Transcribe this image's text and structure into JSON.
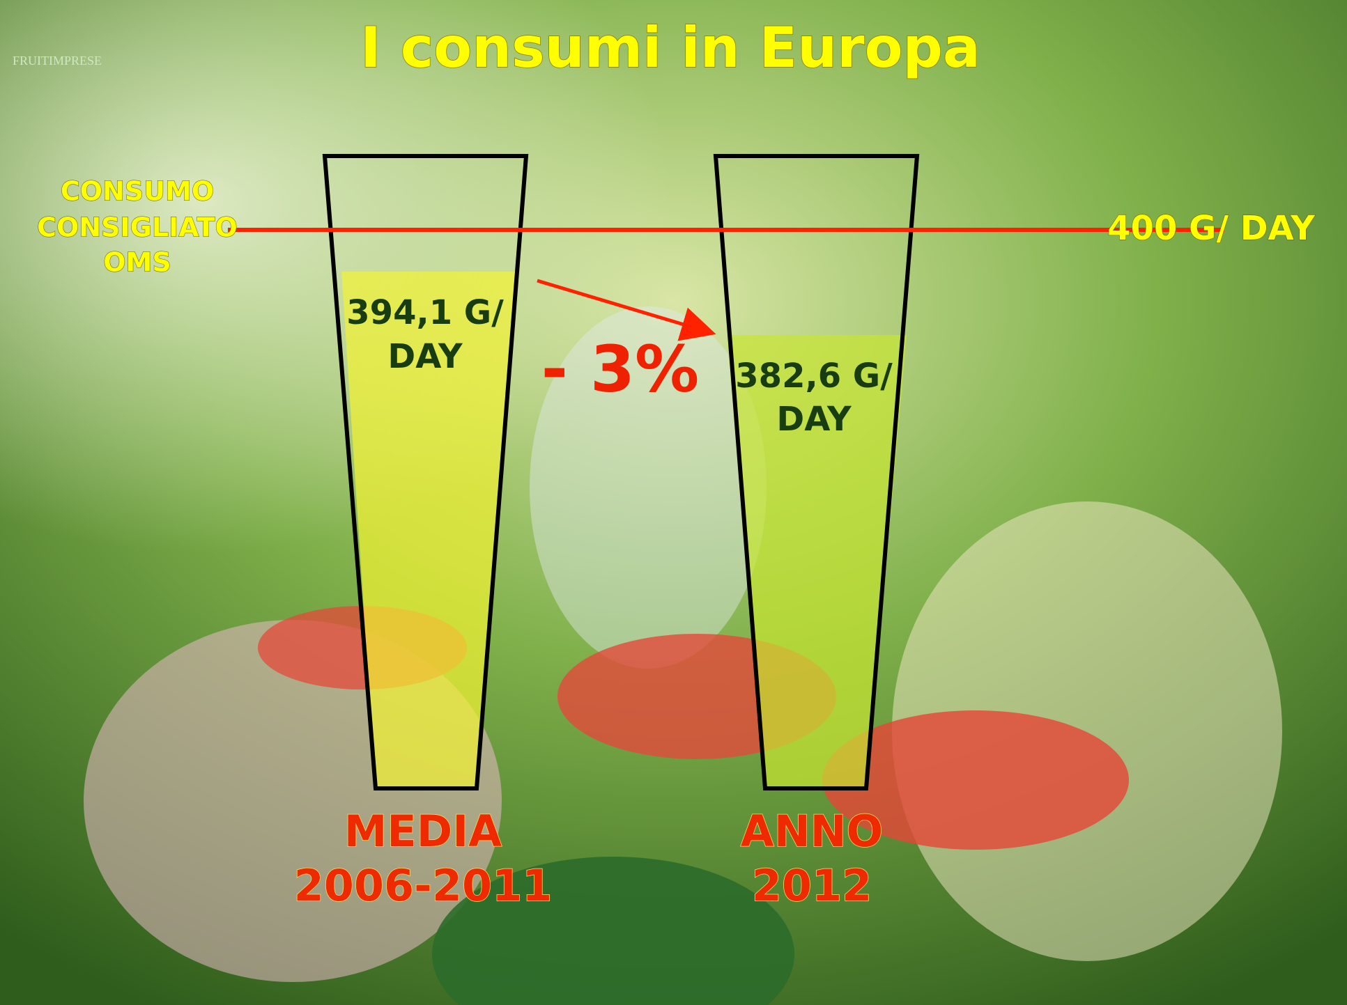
{
  "slide": {
    "title": "I consumi in Europa",
    "logo": "FRUITIMPRESE",
    "reference": {
      "label_lines": [
        "CONSUMO",
        "CONSIGLIATO",
        "OMS"
      ],
      "value_label": "400 G/ DAY"
    },
    "change_label": "- 3%",
    "glasses": [
      {
        "value_lines": [
          "394,1 G/",
          "DAY"
        ],
        "caption_lines": [
          "MEDIA",
          "2006-2011"
        ]
      },
      {
        "value_lines": [
          "382,6 G/",
          "DAY"
        ],
        "caption_lines": [
          "ANNO",
          "2012"
        ]
      }
    ]
  }
}
